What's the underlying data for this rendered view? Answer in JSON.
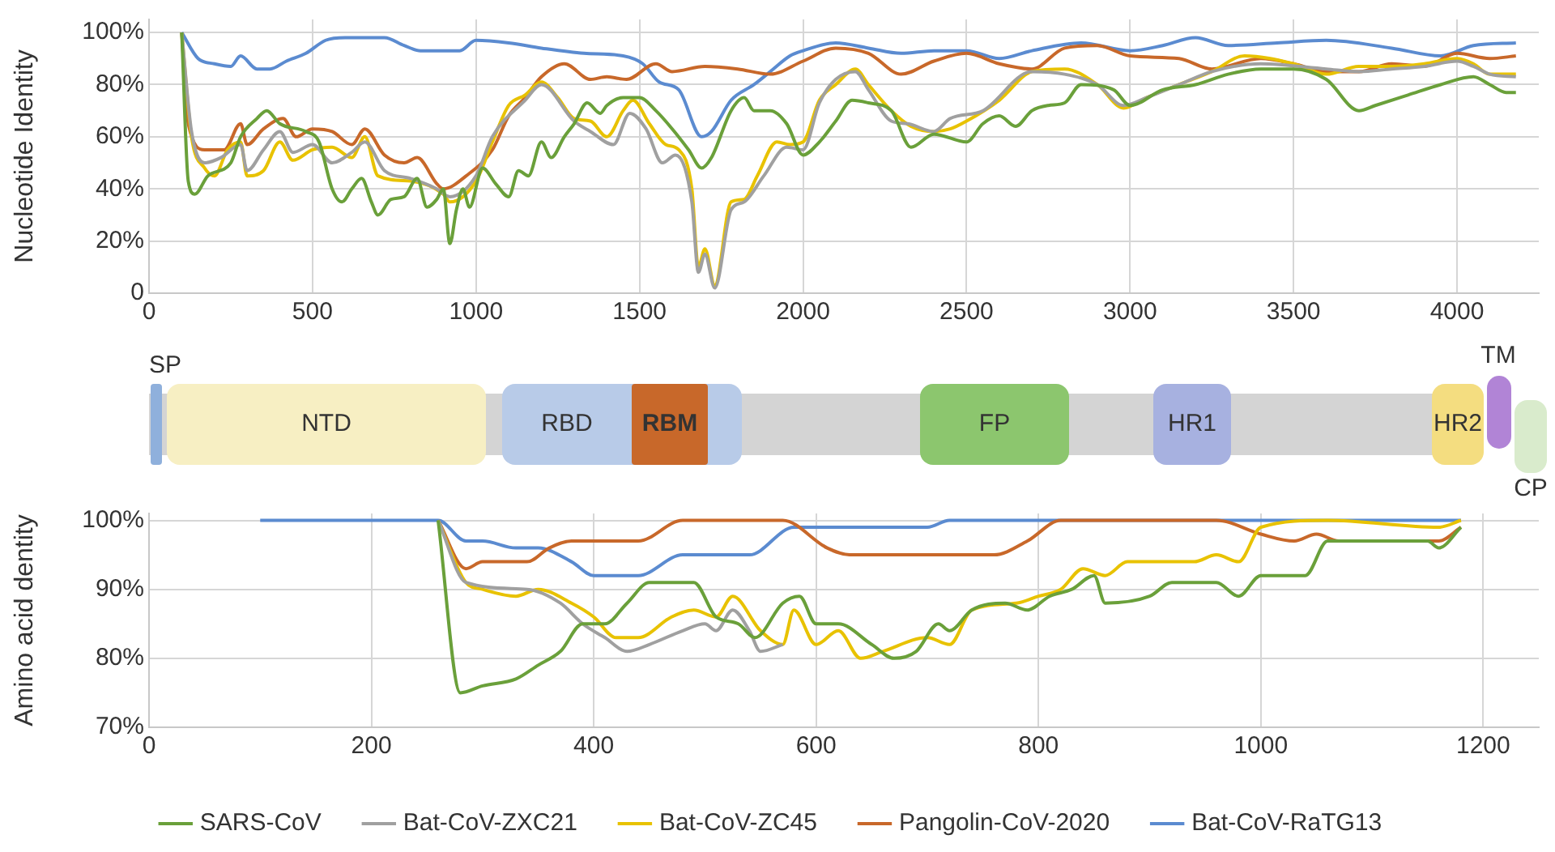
{
  "chart_data": [
    {
      "type": "line",
      "ylabel": "Nucleotide Identity",
      "xlim": [
        0,
        4250
      ],
      "xticks": [
        0,
        500,
        1000,
        1500,
        2000,
        2500,
        3000,
        3500,
        4000
      ],
      "ylim": [
        0,
        105
      ],
      "yticks": [
        {
          "value": 0,
          "label": "0"
        },
        {
          "value": 20,
          "label": "20%"
        },
        {
          "value": 40,
          "label": "40%"
        },
        {
          "value": 60,
          "label": "60%"
        },
        {
          "value": 80,
          "label": "80%"
        },
        {
          "value": 100,
          "label": "100%"
        }
      ],
      "grid": true,
      "marker": "none",
      "series": [
        {
          "color": "#6aa03a",
          "x": [
            100,
            120,
            140,
            180,
            250,
            280,
            330,
            360,
            400,
            480,
            520,
            560,
            590,
            620,
            650,
            680,
            700,
            740,
            780,
            820,
            850,
            880,
            900,
            920,
            940,
            960,
            980,
            1020,
            1060,
            1100,
            1130,
            1160,
            1200,
            1230,
            1270,
            1300,
            1340,
            1380,
            1400,
            1450,
            1500,
            1550,
            1600,
            1650,
            1690,
            1720,
            1780,
            1820,
            1850,
            1900,
            1950,
            2000,
            2050,
            2100,
            2150,
            2200,
            2270,
            2330,
            2400,
            2500,
            2550,
            2600,
            2650,
            2700,
            2750,
            2800,
            2850,
            2950,
            3000,
            3100,
            3200,
            3300,
            3400,
            3500,
            3600,
            3700,
            3750,
            3850,
            3950,
            4050,
            4100,
            4150,
            4180
          ],
          "values": [
            100,
            43,
            38,
            45,
            50,
            60,
            67,
            70,
            65,
            62,
            58,
            40,
            35,
            40,
            44,
            35,
            30,
            36,
            37,
            44,
            33,
            36,
            40,
            19,
            32,
            40,
            33,
            48,
            42,
            37,
            47,
            45,
            58,
            52,
            60,
            65,
            73,
            69,
            72,
            75,
            75,
            70,
            63,
            55,
            48,
            52,
            70,
            75,
            70,
            70,
            65,
            53,
            58,
            66,
            74,
            73,
            70,
            56,
            61,
            58,
            65,
            68,
            64,
            70,
            72,
            73,
            80,
            78,
            72,
            78,
            80,
            84,
            86,
            86,
            82,
            70,
            72,
            76,
            80,
            83,
            80,
            77,
            77
          ]
        },
        {
          "color": "#a0a0a0",
          "x": [
            100,
            130,
            170,
            220,
            280,
            300,
            350,
            400,
            440,
            500,
            560,
            620,
            660,
            720,
            800,
            880,
            920,
            1000,
            1050,
            1150,
            1200,
            1300,
            1350,
            1420,
            1470,
            1520,
            1570,
            1610,
            1660,
            1680,
            1700,
            1730,
            1780,
            1820,
            1880,
            1950,
            2000,
            2050,
            2100,
            2160,
            2200,
            2270,
            2320,
            2400,
            2450,
            2550,
            2700,
            2800,
            2900,
            2980,
            3050,
            3150,
            3250,
            3400,
            3600,
            3700,
            3800,
            3900,
            4000,
            4050,
            4100,
            4180
          ],
          "values": [
            100,
            62,
            50,
            52,
            57,
            47,
            55,
            62,
            54,
            57,
            50,
            54,
            58,
            47,
            44,
            40,
            37,
            45,
            60,
            74,
            80,
            66,
            62,
            57,
            69,
            63,
            50,
            53,
            35,
            8,
            15,
            2,
            32,
            35,
            45,
            56,
            55,
            73,
            82,
            85,
            78,
            66,
            65,
            62,
            67,
            70,
            85,
            84,
            80,
            72,
            75,
            80,
            85,
            88,
            86,
            85,
            86,
            87,
            89,
            87,
            84,
            83
          ]
        },
        {
          "color": "#e8c200",
          "x": [
            100,
            130,
            170,
            200,
            240,
            280,
            300,
            350,
            400,
            440,
            500,
            560,
            620,
            660,
            700,
            800,
            900,
            920,
            1000,
            1050,
            1100,
            1150,
            1200,
            1250,
            1300,
            1350,
            1400,
            1450,
            1480,
            1530,
            1580,
            1620,
            1660,
            1680,
            1700,
            1730,
            1780,
            1820,
            1860,
            1920,
            1960,
            2000,
            2050,
            2100,
            2160,
            2200,
            2270,
            2330,
            2400,
            2450,
            2500,
            2600,
            2700,
            2800,
            2900,
            2980,
            3050,
            3150,
            3250,
            3350,
            3500,
            3600,
            3700,
            3800,
            3900,
            4000,
            4050,
            4100,
            4180
          ],
          "values": [
            100,
            60,
            48,
            45,
            55,
            58,
            45,
            47,
            58,
            51,
            55,
            56,
            52,
            60,
            45,
            43,
            38,
            35,
            43,
            58,
            72,
            76,
            81,
            75,
            67,
            66,
            60,
            70,
            74,
            65,
            57,
            55,
            40,
            10,
            17,
            3,
            35,
            36,
            45,
            58,
            57,
            58,
            74,
            80,
            86,
            80,
            70,
            64,
            62,
            63,
            66,
            74,
            85,
            86,
            80,
            71,
            75,
            80,
            85,
            91,
            88,
            84,
            87,
            87,
            88,
            90,
            88,
            84,
            84
          ]
        },
        {
          "color": "#c8682a",
          "x": [
            100,
            120,
            170,
            230,
            280,
            300,
            350,
            410,
            450,
            500,
            560,
            620,
            660,
            720,
            780,
            820,
            880,
            900,
            970,
            1050,
            1100,
            1150,
            1200,
            1270,
            1350,
            1400,
            1460,
            1550,
            1600,
            1700,
            1800,
            1900,
            2000,
            2100,
            2200,
            2300,
            2400,
            2500,
            2600,
            2700,
            2800,
            2900,
            3000,
            3150,
            3250,
            3400,
            3500,
            3600,
            3700,
            3800,
            3900,
            4000,
            4100,
            4180
          ],
          "values": [
            100,
            65,
            55,
            55,
            65,
            57,
            63,
            67,
            60,
            63,
            62,
            57,
            63,
            53,
            50,
            52,
            42,
            40,
            45,
            55,
            68,
            75,
            83,
            88,
            82,
            83,
            82,
            88,
            85,
            87,
            86,
            84,
            89,
            94,
            92,
            84,
            89,
            92,
            88,
            86,
            94,
            95,
            91,
            90,
            86,
            90,
            88,
            85,
            85,
            88,
            87,
            92,
            90,
            91
          ]
        },
        {
          "color": "#5b8bd0",
          "x": [
            100,
            150,
            200,
            250,
            280,
            330,
            370,
            420,
            480,
            540,
            600,
            720,
            780,
            830,
            950,
            1000,
            1100,
            1200,
            1330,
            1450,
            1510,
            1560,
            1620,
            1690,
            1720,
            1780,
            1850,
            1900,
            1960,
            2000,
            2100,
            2200,
            2300,
            2400,
            2500,
            2600,
            2700,
            2850,
            3000,
            3100,
            3200,
            3300,
            3450,
            3600,
            3800,
            3950,
            4050,
            4180
          ],
          "values": [
            100,
            90,
            88,
            87,
            91,
            86,
            86,
            89,
            92,
            97,
            98,
            98,
            95,
            93,
            93,
            97,
            96,
            94,
            92,
            91,
            88,
            81,
            78,
            60,
            62,
            74,
            80,
            85,
            91,
            93,
            96,
            94,
            92,
            93,
            93,
            90,
            93,
            96,
            93,
            95,
            98,
            95,
            96,
            97,
            94,
            91,
            95,
            96
          ]
        }
      ]
    },
    {
      "type": "other",
      "annotations": [
        "SP",
        "NTD",
        "RBD",
        "RBM",
        "FP",
        "HR1",
        "HR2",
        "TM",
        "CP"
      ]
    },
    {
      "type": "line",
      "ylabel": "Amino acid dentity",
      "xlim": [
        0,
        1250
      ],
      "xticks": [
        0,
        200,
        400,
        600,
        800,
        1000,
        1200
      ],
      "ylim": [
        70,
        101
      ],
      "yticks": [
        {
          "value": 70,
          "label": "70%"
        },
        {
          "value": 80,
          "label": "80%"
        },
        {
          "value": 90,
          "label": "90%"
        },
        {
          "value": 100,
          "label": "100%"
        }
      ],
      "grid": true,
      "marker": "none",
      "legend": "bottom",
      "series": [
        {
          "name": "SARS-CoV",
          "color": "#6aa03a",
          "x": [
            260,
            280,
            300,
            330,
            350,
            370,
            390,
            410,
            430,
            450,
            490,
            510,
            530,
            545,
            570,
            585,
            600,
            620,
            650,
            670,
            690,
            710,
            720,
            740,
            770,
            790,
            810,
            830,
            850,
            860,
            900,
            920,
            960,
            980,
            1000,
            1040,
            1060,
            1150,
            1160,
            1180
          ],
          "values": [
            100,
            75,
            76,
            77,
            79,
            81,
            85,
            85,
            88,
            91,
            91,
            86,
            85,
            83,
            88,
            89,
            85,
            85,
            82,
            80,
            81,
            85,
            84,
            87,
            88,
            87,
            89,
            90,
            92,
            88,
            89,
            91,
            91,
            89,
            92,
            92,
            97,
            97,
            96,
            99
          ]
        },
        {
          "name": "Bat-CoV-ZXC21",
          "color": "#a0a0a0",
          "x": [
            260,
            285,
            340,
            370,
            390,
            410,
            430,
            450,
            480,
            500,
            510,
            525,
            540,
            550,
            570
          ],
          "values": [
            100,
            91,
            90,
            88,
            85,
            83,
            81,
            82,
            84,
            85,
            84,
            87,
            84,
            81,
            82
          ]
        },
        {
          "name": "Bat-CoV-ZC45",
          "color": "#e8c200",
          "x": [
            260,
            285,
            300,
            330,
            350,
            380,
            400,
            420,
            440,
            470,
            490,
            510,
            525,
            550,
            570,
            580,
            600,
            620,
            640,
            660,
            700,
            720,
            740,
            780,
            800,
            820,
            840,
            860,
            880,
            940,
            960,
            980,
            1000,
            1060,
            1160,
            1180
          ],
          "values": [
            100,
            91,
            90,
            89,
            90,
            88,
            86,
            83,
            83,
            86,
            87,
            86,
            89,
            84,
            82,
            87,
            82,
            84,
            80,
            81,
            83,
            82,
            87,
            88,
            89,
            90,
            93,
            92,
            94,
            94,
            95,
            94,
            99,
            100,
            99,
            100
          ]
        },
        {
          "name": "Pangolin-CoV-2020",
          "color": "#c8682a",
          "x": [
            260,
            285,
            300,
            340,
            360,
            380,
            440,
            480,
            570,
            610,
            630,
            760,
            790,
            820,
            960,
            1000,
            1030,
            1050,
            1070,
            1160,
            1180
          ],
          "values": [
            100,
            93,
            94,
            94,
            96,
            97,
            97,
            100,
            100,
            96,
            95,
            95,
            97,
            100,
            100,
            98,
            97,
            98,
            97,
            97,
            99
          ]
        },
        {
          "name": "Bat-CoV-RaTG13",
          "color": "#5b8bd0",
          "x": [
            100,
            260,
            285,
            300,
            330,
            350,
            380,
            400,
            440,
            480,
            540,
            580,
            600,
            700,
            720,
            1180
          ],
          "values": [
            100,
            100,
            97,
            97,
            96,
            96,
            94,
            92,
            92,
            95,
            95,
            99,
            99,
            99,
            100,
            100
          ]
        }
      ]
    }
  ]
}
